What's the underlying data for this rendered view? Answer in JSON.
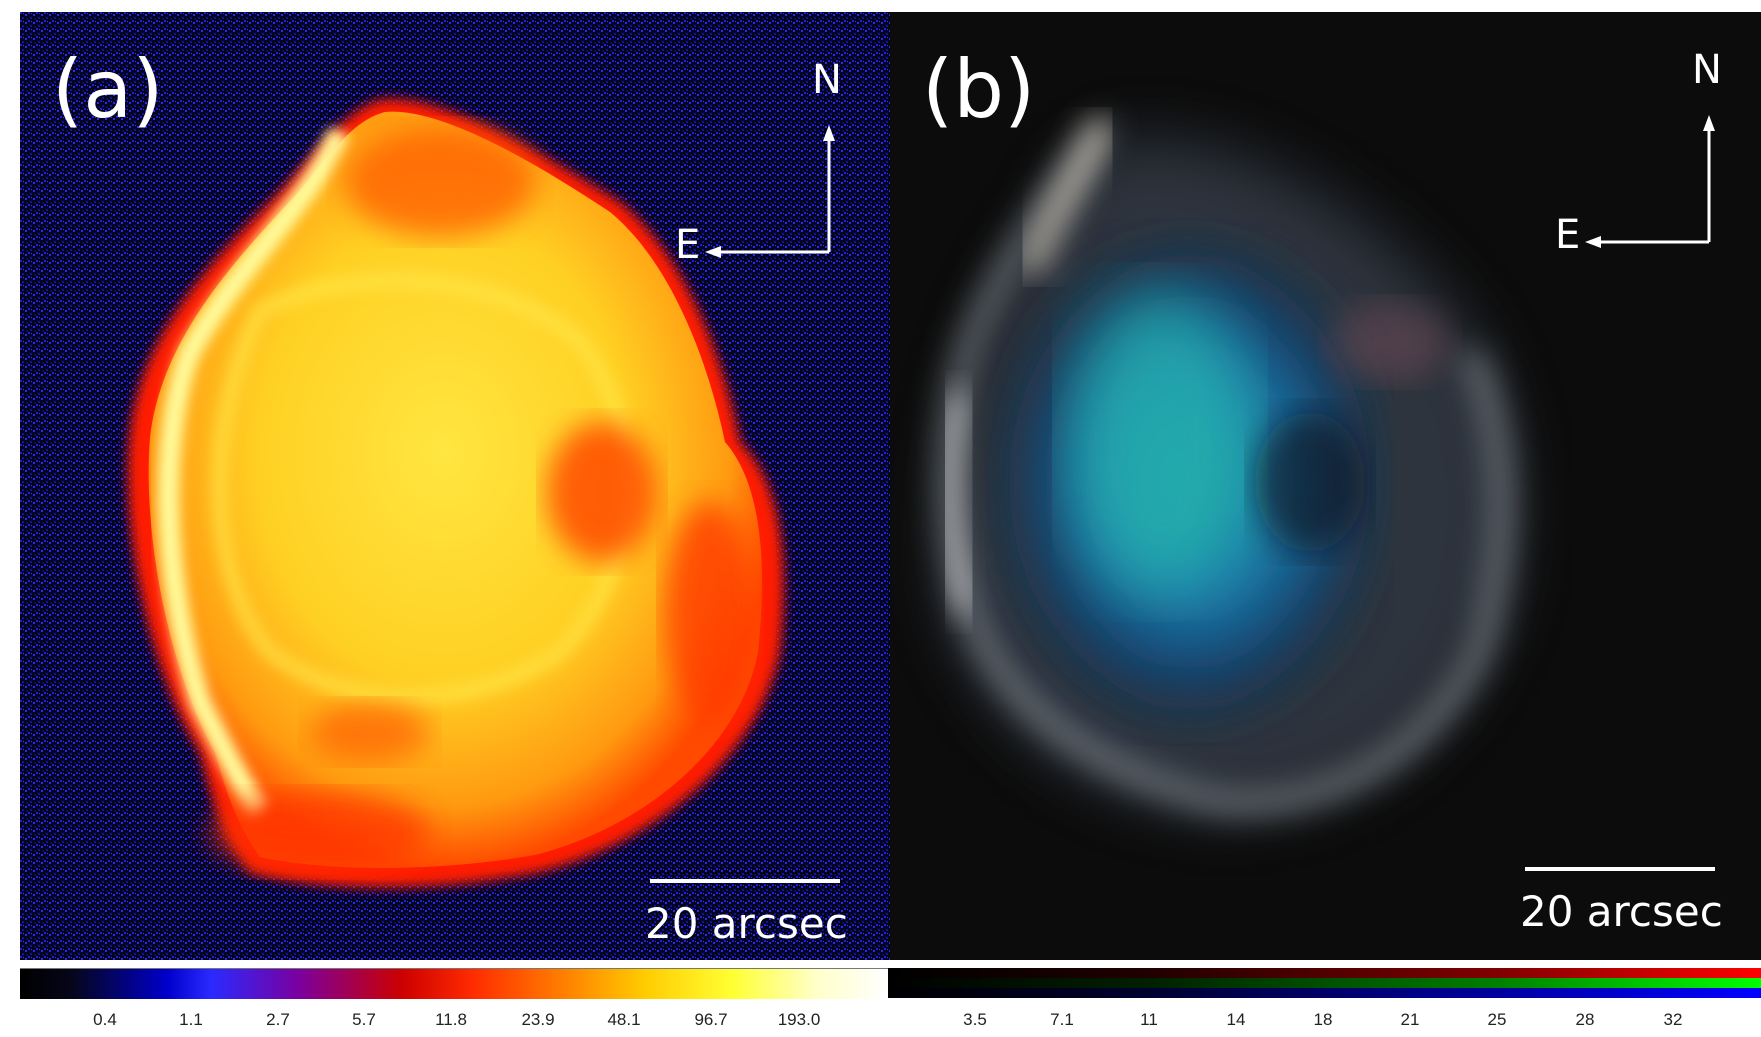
{
  "panel_a": {
    "label": "(a)",
    "compass": {
      "north": "N",
      "east": "E"
    },
    "scalebar_label": "20 arcsec",
    "colorbar_ticks": [
      "0.4",
      "1.1",
      "2.7",
      "5.7",
      "11.8",
      "23.9",
      "48.1",
      "96.7",
      "193.0"
    ],
    "colormap": [
      "#000000",
      "#0000cc",
      "#7a00a0",
      "#cc0000",
      "#ff7a00",
      "#ffff33",
      "#ffffff"
    ]
  },
  "panel_b": {
    "label": "(b)",
    "compass": {
      "north": "N",
      "east": "E"
    },
    "scalebar_label": "20 arcsec",
    "colorbar_ticks": [
      "3.5",
      "7.1",
      "11",
      "14",
      "18",
      "21",
      "25",
      "28",
      "32"
    ],
    "colormap": [
      "#ff0000",
      "#00ff00",
      "#0000ff"
    ]
  }
}
